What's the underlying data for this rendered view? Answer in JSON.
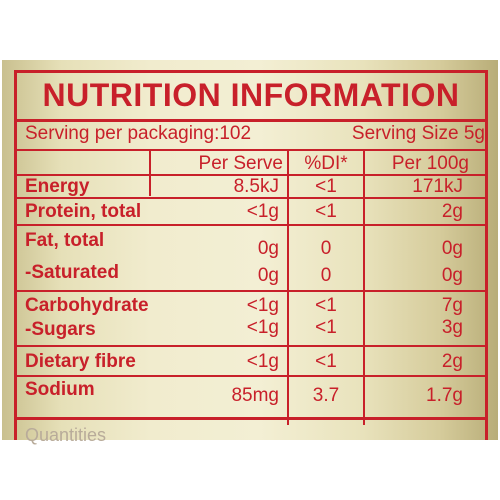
{
  "title": "NUTRITION INFORMATION",
  "serving": {
    "per_packaging": "Serving per packaging:102",
    "size": "Serving Size 5g"
  },
  "headers": {
    "per_serve": "Per Serve",
    "di": "%DI*",
    "per_100g": "Per 100g"
  },
  "rows": [
    {
      "name": "Energy",
      "per_serve": "8.5kJ",
      "di": "<1",
      "per_100g": "171kJ"
    },
    {
      "name": "Protein, total",
      "per_serve": "<1g",
      "di": "<1",
      "per_100g": "2g"
    },
    {
      "name": "Fat, total",
      "per_serve": "0g",
      "di": "0",
      "per_100g": "0g"
    },
    {
      "name": "-Saturated",
      "per_serve": "0g",
      "di": "0",
      "per_100g": "0g"
    },
    {
      "name": "Carbohydrate",
      "per_serve": "<1g",
      "di": "<1",
      "per_100g": "7g"
    },
    {
      "name": "-Sugars",
      "per_serve": "<1g",
      "di": "<1",
      "per_100g": "3g"
    },
    {
      "name": "Dietary fibre",
      "per_serve": "<1g",
      "di": "<1",
      "per_100g": "2g"
    },
    {
      "name": "Sodium",
      "per_serve": "85mg",
      "di": "3.7",
      "per_100g": "1.7g"
    }
  ],
  "footer": "Quantities"
}
